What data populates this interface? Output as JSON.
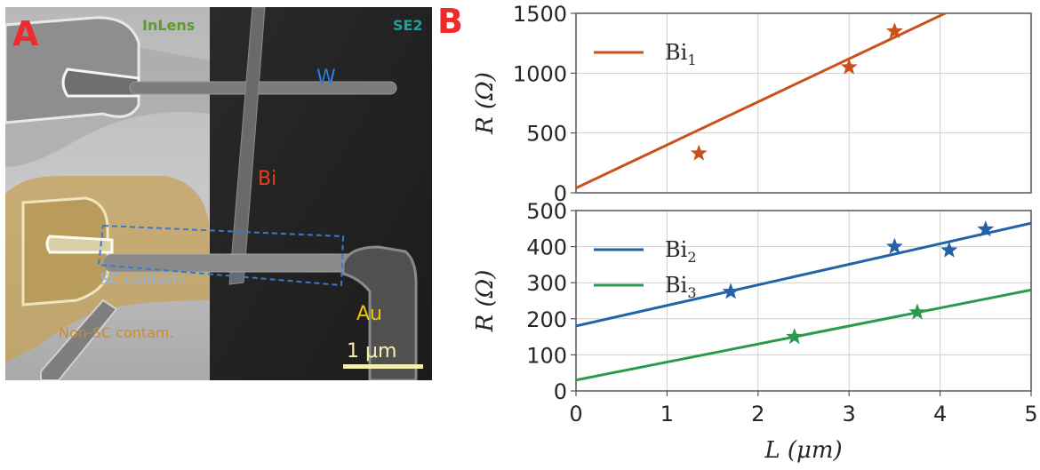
{
  "panel_a": {
    "label": "A",
    "detector_left": "InLens",
    "detector_right": "SE2",
    "label_w": "W",
    "label_bi": "Bi",
    "label_au": "Au",
    "label_sc": "SC contam.",
    "label_nonsc": "Non-SC contam.",
    "scale_bar": "1 μm",
    "colors": {
      "inlens": "#5a9e2a",
      "se2": "#19a3a0",
      "w": "#2c7fd9",
      "bi": "#e0421c",
      "au": "#f2c400",
      "sc": "#8fb3e0",
      "nonsc": "#c98e2c",
      "dashed_box": "#3a78d0",
      "scale": "#f6f0b0"
    }
  },
  "panel_b": {
    "label": "B"
  },
  "chart_data": [
    {
      "type": "scatter",
      "ylabel": "R (Ω)",
      "xlim": [
        0,
        5
      ],
      "ylim": [
        0,
        1500
      ],
      "yticks": [
        0,
        500,
        1000,
        1500
      ],
      "grid": true,
      "legend_position": "top-left",
      "series": [
        {
          "name": "Bi",
          "name_sub": "1",
          "color": "#c9521c",
          "points": [
            [
              1.35,
              330
            ],
            [
              3.0,
              1050
            ],
            [
              3.5,
              1350
            ]
          ],
          "fit": {
            "intercept": 40,
            "slope": 360
          }
        }
      ]
    },
    {
      "type": "scatter",
      "xlabel": "L (μm)",
      "ylabel": "R (Ω)",
      "xlim": [
        0,
        5
      ],
      "ylim": [
        0,
        500
      ],
      "xticks": [
        0,
        1,
        2,
        3,
        4,
        5
      ],
      "yticks": [
        0,
        100,
        200,
        300,
        400,
        500
      ],
      "grid": true,
      "legend_position": "top-left",
      "series": [
        {
          "name": "Bi",
          "name_sub": "2",
          "color": "#2462a8",
          "points": [
            [
              1.7,
              275
            ],
            [
              3.5,
              400
            ],
            [
              4.1,
              390
            ],
            [
              4.5,
              448
            ]
          ],
          "fit": {
            "intercept": 180,
            "slope": 57
          }
        },
        {
          "name": "Bi",
          "name_sub": "3",
          "color": "#2c9a4c",
          "points": [
            [
              2.4,
              150
            ],
            [
              3.75,
              218
            ]
          ],
          "fit": {
            "intercept": 30,
            "slope": 50
          }
        }
      ]
    }
  ]
}
